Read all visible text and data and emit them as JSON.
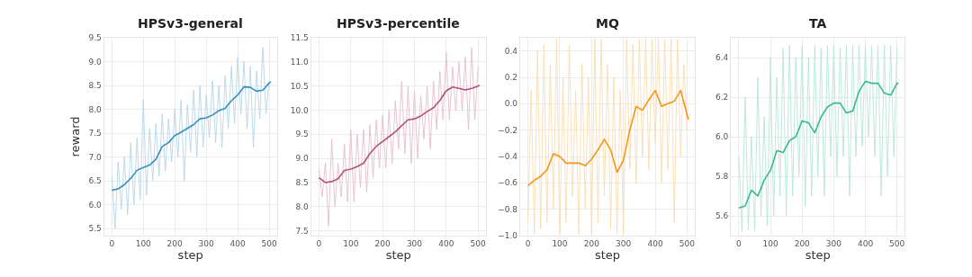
{
  "chart_data": [
    {
      "type": "line",
      "title": "HPSv3-general",
      "xlabel": "step",
      "ylabel": "reward",
      "xlim": [
        -25,
        525
      ],
      "xticks": [
        0,
        100,
        200,
        300,
        400,
        500
      ],
      "ylim": [
        5.35,
        9.5
      ],
      "yticks": [
        5.5,
        {
          "value": 6,
          "label": "6.0"
        },
        6.5,
        {
          "value": 7,
          "label": "7.0"
        },
        7.5,
        {
          "value": 8,
          "label": "8.0"
        },
        8.5,
        {
          "value": 9,
          "label": "9.0"
        },
        9.5
      ],
      "grid": true,
      "marker": "none",
      "series": [
        {
          "color": "#b4d6e6",
          "x": [
            0,
            10,
            20,
            30,
            40,
            50,
            60,
            70,
            80,
            90,
            100,
            110,
            120,
            130,
            140,
            150,
            160,
            170,
            180,
            190,
            200,
            210,
            220,
            230,
            240,
            250,
            260,
            270,
            280,
            290,
            300,
            310,
            320,
            330,
            340,
            350,
            360,
            370,
            380,
            390,
            400,
            410,
            420,
            430,
            440,
            450,
            460,
            470,
            480,
            490,
            500
          ],
          "values": [
            6.6,
            5.5,
            6.9,
            5.9,
            7.0,
            5.8,
            7.3,
            6.0,
            7.4,
            6.1,
            8.2,
            6.2,
            7.6,
            6.5,
            7.7,
            6.6,
            7.9,
            6.7,
            7.8,
            6.9,
            8.0,
            7.0,
            8.2,
            6.5,
            8.1,
            7.1,
            8.4,
            7.0,
            8.5,
            7.2,
            8.3,
            7.4,
            8.6,
            7.3,
            8.5,
            7.2,
            8.7,
            7.6,
            8.9,
            7.7,
            9.1,
            7.9,
            9.0,
            7.6,
            8.9,
            7.2,
            8.8,
            7.8,
            9.3,
            7.9,
            8.6
          ]
        },
        {
          "color": "#3a8fb7",
          "x": [
            0,
            20,
            40,
            60,
            80,
            100,
            120,
            140,
            160,
            180,
            200,
            220,
            240,
            260,
            280,
            300,
            320,
            340,
            360,
            380,
            400,
            420,
            440,
            460,
            480,
            500,
            505
          ],
          "values": [
            6.3,
            6.33,
            6.42,
            6.55,
            6.72,
            6.78,
            6.83,
            6.95,
            7.22,
            7.3,
            7.45,
            7.52,
            7.6,
            7.68,
            7.8,
            7.82,
            7.88,
            7.97,
            8.02,
            8.18,
            8.3,
            8.47,
            8.46,
            8.38,
            8.4,
            8.55,
            8.58
          ]
        }
      ]
    },
    {
      "type": "line",
      "title": "HPSv3-percentile",
      "xlabel": "step",
      "xlim": [
        -25,
        525
      ],
      "xticks": [
        0,
        100,
        200,
        300,
        400,
        500
      ],
      "ylim": [
        7.4,
        11.5
      ],
      "yticks": [
        7.5,
        {
          "value": 8,
          "label": "8.0"
        },
        8.5,
        {
          "value": 9,
          "label": "9.0"
        },
        9.5,
        {
          "value": 10,
          "label": "10.0"
        },
        10.5,
        {
          "value": 11,
          "label": "11.0"
        },
        11.5
      ],
      "grid": true,
      "marker": "none",
      "series": [
        {
          "color": "#e6bccd",
          "x": [
            0,
            10,
            20,
            30,
            40,
            50,
            60,
            70,
            80,
            90,
            100,
            110,
            120,
            130,
            140,
            150,
            160,
            170,
            180,
            190,
            200,
            210,
            220,
            230,
            240,
            250,
            260,
            270,
            280,
            290,
            300,
            310,
            320,
            330,
            340,
            350,
            360,
            370,
            380,
            390,
            400,
            410,
            420,
            430,
            440,
            450,
            460,
            470,
            480,
            490,
            500
          ],
          "values": [
            8.8,
            8.2,
            8.9,
            7.6,
            9.4,
            8.0,
            8.9,
            8.2,
            9.3,
            8.1,
            9.6,
            8.1,
            9.5,
            8.4,
            9.6,
            8.3,
            9.7,
            8.6,
            9.8,
            8.8,
            9.9,
            8.8,
            10.0,
            8.9,
            10.2,
            9.2,
            10.6,
            9.1,
            10.5,
            8.9,
            10.4,
            9.0,
            10.3,
            9.4,
            10.5,
            9.2,
            10.6,
            9.6,
            10.8,
            9.8,
            11.2,
            9.8,
            10.9,
            10.0,
            11.0,
            10.0,
            11.1,
            9.6,
            11.3,
            9.8,
            10.9
          ]
        },
        {
          "color": "#b05478",
          "x": [
            0,
            20,
            40,
            60,
            80,
            100,
            120,
            140,
            160,
            180,
            200,
            220,
            240,
            260,
            280,
            300,
            320,
            340,
            360,
            380,
            400,
            420,
            440,
            460,
            480,
            500,
            505
          ],
          "values": [
            8.6,
            8.5,
            8.52,
            8.58,
            8.75,
            8.78,
            8.83,
            8.9,
            9.1,
            9.25,
            9.35,
            9.45,
            9.55,
            9.68,
            9.8,
            9.82,
            9.88,
            9.97,
            10.05,
            10.2,
            10.4,
            10.48,
            10.45,
            10.42,
            10.45,
            10.5,
            10.52
          ]
        }
      ]
    },
    {
      "type": "line",
      "title": "MQ",
      "xlabel": "step",
      "xlim": [
        -25,
        525
      ],
      "xticks": [
        0,
        100,
        200,
        300,
        400,
        500
      ],
      "ylim": [
        -1.0,
        0.5
      ],
      "yticks": [
        {
          "value": -1,
          "label": "−1.0"
        },
        {
          "value": -0.8,
          "label": "−0.8"
        },
        {
          "value": -0.6,
          "label": "−0.6"
        },
        {
          "value": -0.4,
          "label": "−0.4"
        },
        {
          "value": -0.2,
          "label": "−0.2"
        },
        {
          "value": 0,
          "label": "0.0"
        },
        0.2,
        0.4
      ],
      "grid": true,
      "marker": "none",
      "series": [
        {
          "color": "#f9dcb0",
          "x": [
            0,
            10,
            20,
            30,
            40,
            50,
            60,
            70,
            80,
            90,
            100,
            110,
            120,
            130,
            140,
            150,
            160,
            170,
            180,
            190,
            200,
            210,
            220,
            230,
            240,
            250,
            260,
            270,
            280,
            290,
            300,
            310,
            320,
            330,
            340,
            350,
            360,
            370,
            380,
            390,
            400,
            410,
            420,
            430,
            440,
            450,
            460,
            470,
            480,
            490,
            500
          ],
          "values": [
            -0.9,
            0.1,
            -0.99,
            0.4,
            -0.95,
            0.45,
            -0.9,
            0.3,
            -0.8,
            0.49,
            -0.99,
            0.2,
            -0.9,
            0.45,
            -0.7,
            0.1,
            -0.99,
            0.3,
            -0.8,
            0.2,
            -0.99,
            0.49,
            -0.9,
            0.49,
            -0.7,
            0.3,
            -0.95,
            0.2,
            -0.99,
            0.1,
            -0.99,
            0.49,
            -0.5,
            0.45,
            -0.6,
            0.49,
            -0.4,
            0.49,
            -0.5,
            0.49,
            -0.3,
            0.49,
            -0.6,
            0.49,
            -0.5,
            0.49,
            -0.9,
            0.49,
            -0.4,
            0.3,
            -0.2
          ]
        },
        {
          "color": "#f0961e",
          "x": [
            0,
            20,
            40,
            60,
            80,
            100,
            120,
            140,
            160,
            180,
            200,
            220,
            240,
            260,
            280,
            300,
            320,
            340,
            360,
            380,
            400,
            420,
            440,
            460,
            480,
            500,
            505
          ],
          "values": [
            -0.62,
            -0.58,
            -0.55,
            -0.5,
            -0.38,
            -0.4,
            -0.45,
            -0.45,
            -0.45,
            -0.47,
            -0.42,
            -0.35,
            -0.27,
            -0.35,
            -0.52,
            -0.43,
            -0.2,
            -0.02,
            -0.05,
            0.03,
            0.1,
            -0.02,
            0.0,
            0.02,
            0.1,
            -0.08,
            -0.12
          ]
        }
      ]
    },
    {
      "type": "line",
      "title": "TA",
      "xlabel": "step",
      "xlim": [
        -25,
        525
      ],
      "xticks": [
        0,
        100,
        200,
        300,
        400,
        500
      ],
      "ylim": [
        5.5,
        6.5
      ],
      "yticks": [
        5.6,
        5.8,
        {
          "value": 6,
          "label": "6.0"
        },
        6.2,
        6.4
      ],
      "grid": true,
      "marker": "none",
      "series": [
        {
          "color": "#b6e7d6",
          "x": [
            0,
            10,
            20,
            30,
            40,
            50,
            60,
            70,
            80,
            90,
            100,
            110,
            120,
            130,
            140,
            150,
            160,
            170,
            180,
            190,
            200,
            210,
            220,
            230,
            240,
            250,
            260,
            270,
            280,
            290,
            300,
            310,
            320,
            330,
            340,
            350,
            360,
            370,
            380,
            390,
            400,
            410,
            420,
            430,
            440,
            450,
            460,
            470,
            480,
            490,
            500
          ],
          "values": [
            5.9,
            5.52,
            6.2,
            5.53,
            6.0,
            5.52,
            6.3,
            5.6,
            6.1,
            5.55,
            6.4,
            5.6,
            6.3,
            5.7,
            6.45,
            5.6,
            6.46,
            5.7,
            6.4,
            5.8,
            6.46,
            5.65,
            6.4,
            5.7,
            6.46,
            5.8,
            6.45,
            5.7,
            6.46,
            5.9,
            6.46,
            5.8,
            6.45,
            5.9,
            6.46,
            5.7,
            6.46,
            5.9,
            6.46,
            5.95,
            6.46,
            6.0,
            6.46,
            5.9,
            6.46,
            5.7,
            6.46,
            5.8,
            6.46,
            5.9,
            6.45
          ]
        },
        {
          "color": "#3cb88e",
          "x": [
            0,
            20,
            40,
            60,
            80,
            100,
            120,
            140,
            160,
            180,
            200,
            220,
            240,
            260,
            280,
            300,
            320,
            340,
            360,
            380,
            400,
            420,
            440,
            460,
            480,
            500,
            505
          ],
          "values": [
            5.64,
            5.65,
            5.73,
            5.7,
            5.78,
            5.83,
            5.93,
            5.92,
            5.98,
            6.0,
            6.08,
            6.07,
            6.02,
            6.1,
            6.15,
            6.17,
            6.17,
            6.12,
            6.13,
            6.23,
            6.28,
            6.27,
            6.27,
            6.22,
            6.21,
            6.27,
            6.27
          ]
        }
      ]
    }
  ]
}
